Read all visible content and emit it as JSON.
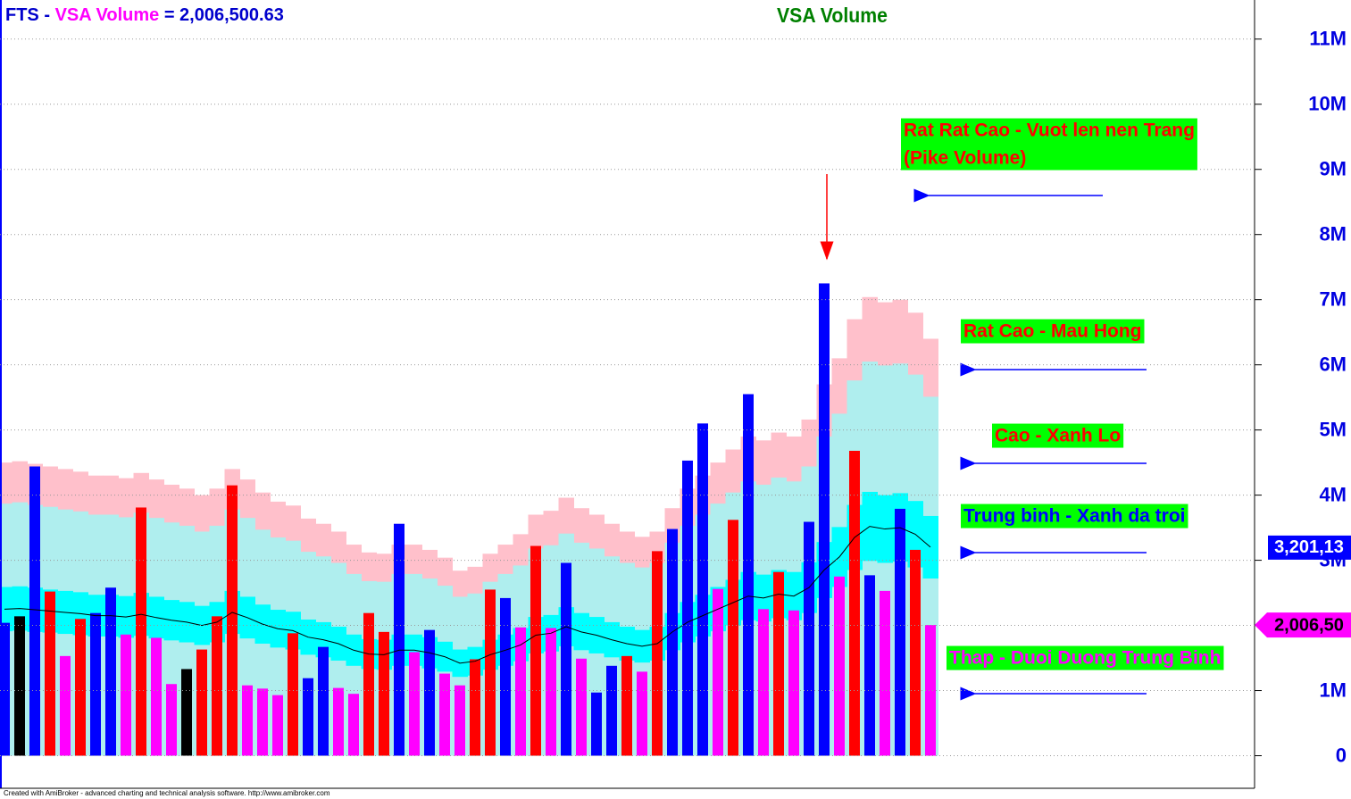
{
  "chart_data": {
    "type": "bar",
    "title": "VSA Volume",
    "title_parts": [
      "FTS",
      " - ",
      " = 2,006,500.63"
    ],
    "footer": "Created with AmiBroker - advanced charting and technical analysis software. http://www.amibroker.com",
    "ylim": [
      -0.5,
      11.6
    ],
    "yticks": [
      0,
      {
        "value": 1,
        "label": "1M"
      },
      {
        "value": 2,
        "label": "2M"
      },
      {
        "value": 3,
        "label": "3M"
      },
      {
        "value": 4,
        "label": "4M"
      },
      {
        "value": 5,
        "label": "5M"
      },
      {
        "value": 6,
        "label": "6M"
      },
      {
        "value": 7,
        "label": "7M"
      },
      {
        "value": 8,
        "label": "8M"
      },
      {
        "value": 9,
        "label": "9M"
      },
      {
        "value": 10,
        "label": "10M"
      },
      {
        "value": 11,
        "label": "11M"
      }
    ],
    "grid": true,
    "series": [
      {
        "name": "VSA Volume",
        "values": [
          2.04,
          2.14,
          4.44,
          2.52,
          1.53,
          2.1,
          2.19,
          2.58,
          1.86,
          3.81,
          1.81,
          1.1,
          1.33,
          1.63,
          2.14,
          4.15,
          1.08,
          1.03,
          0.93,
          1.88,
          1.19,
          1.67,
          1.04,
          0.95,
          2.19,
          1.9,
          3.56,
          1.59,
          1.93,
          1.26,
          1.08,
          1.48,
          2.55,
          2.42,
          1.97,
          3.22,
          1.96,
          2.96,
          1.49,
          0.97,
          1.38,
          1.53,
          1.29,
          3.14,
          3.48,
          4.53,
          5.1,
          2.56,
          3.62,
          5.55,
          2.25,
          2.82,
          2.23,
          3.59,
          7.25,
          2.75,
          4.68,
          2.77,
          2.53,
          3.79,
          3.16,
          2.0065
        ],
        "colors": [
          "#0000ff",
          "#000000",
          "#0000ff",
          "#ff0000",
          "#ff00ff",
          "#ff0000",
          "#0000ff",
          "#0000ff",
          "#ff00ff",
          "#ff0000",
          "#ff00ff",
          "#ff00ff",
          "#000000",
          "#ff0000",
          "#ff0000",
          "#ff0000",
          "#ff00ff",
          "#ff00ff",
          "#ff00ff",
          "#ff0000",
          "#0000ff",
          "#0000ff",
          "#ff00ff",
          "#ff00ff",
          "#ff0000",
          "#ff0000",
          "#0000ff",
          "#ff00ff",
          "#0000ff",
          "#ff00ff",
          "#ff00ff",
          "#ff0000",
          "#ff0000",
          "#0000ff",
          "#ff00ff",
          "#ff0000",
          "#ff00ff",
          "#0000ff",
          "#ff00ff",
          "#0000ff",
          "#0000ff",
          "#ff0000",
          "#ff00ff",
          "#ff0000",
          "#0000ff",
          "#0000ff",
          "#0000ff",
          "#ff00ff",
          "#ff0000",
          "#0000ff",
          "#ff00ff",
          "#ff0000",
          "#ff00ff",
          "#0000ff",
          "#0000ff",
          "#ff00ff",
          "#ff0000",
          "#0000ff",
          "#ff00ff",
          "#0000ff",
          "#ff0000",
          "#ff00ff"
        ]
      }
    ],
    "ma": {
      "color": "#000000",
      "values": [
        2.25,
        2.26,
        2.24,
        2.22,
        2.2,
        2.18,
        2.15,
        2.15,
        2.13,
        2.17,
        2.12,
        2.08,
        2.05,
        2.0,
        2.05,
        2.2,
        2.12,
        2.02,
        1.95,
        1.92,
        1.82,
        1.78,
        1.72,
        1.62,
        1.56,
        1.55,
        1.62,
        1.62,
        1.58,
        1.52,
        1.42,
        1.45,
        1.55,
        1.62,
        1.7,
        1.85,
        1.88,
        1.98,
        1.9,
        1.85,
        1.78,
        1.72,
        1.68,
        1.72,
        1.9,
        2.05,
        2.15,
        2.25,
        2.35,
        2.45,
        2.42,
        2.48,
        2.45,
        2.58,
        2.85,
        3.05,
        3.35,
        3.52,
        3.48,
        3.5,
        3.4,
        3.2013
      ]
    },
    "bands": [
      {
        "color": "#ffc0cb",
        "values": [
          4.5,
          4.52,
          4.48,
          4.44,
          4.4,
          4.36,
          4.3,
          4.3,
          4.26,
          4.34,
          4.24,
          4.16,
          4.1,
          4.0,
          4.1,
          4.4,
          4.24,
          4.04,
          3.9,
          3.84,
          3.64,
          3.56,
          3.44,
          3.24,
          3.12,
          3.1,
          3.24,
          3.24,
          3.16,
          3.04,
          2.84,
          2.9,
          3.1,
          3.24,
          3.4,
          3.7,
          3.76,
          3.96,
          3.8,
          3.7,
          3.56,
          3.44,
          3.36,
          3.44,
          3.8,
          4.1,
          4.3,
          4.5,
          4.7,
          4.9,
          4.84,
          4.96,
          4.9,
          5.16,
          5.7,
          6.1,
          6.7,
          7.04,
          6.96,
          7.0,
          6.8,
          6.4
        ]
      },
      {
        "color": "#afeeee",
        "values": [
          3.87,
          3.89,
          3.85,
          3.82,
          3.78,
          3.75,
          3.7,
          3.7,
          3.66,
          3.73,
          3.65,
          3.58,
          3.53,
          3.44,
          3.53,
          3.78,
          3.65,
          3.47,
          3.35,
          3.3,
          3.13,
          3.06,
          2.96,
          2.79,
          2.68,
          2.67,
          2.79,
          2.79,
          2.72,
          2.61,
          2.44,
          2.49,
          2.67,
          2.79,
          2.92,
          3.18,
          3.23,
          3.41,
          3.27,
          3.18,
          3.06,
          2.96,
          2.89,
          2.96,
          3.27,
          3.53,
          3.7,
          3.87,
          4.04,
          4.21,
          4.16,
          4.27,
          4.21,
          4.44,
          4.9,
          5.25,
          5.76,
          6.05,
          5.99,
          6.02,
          5.85,
          5.51
        ]
      },
      {
        "color": "#00ffff",
        "lower": [
          1.91,
          1.92,
          1.9,
          1.89,
          1.87,
          1.85,
          1.83,
          1.83,
          1.81,
          1.84,
          1.8,
          1.77,
          1.74,
          1.7,
          1.74,
          1.87,
          1.8,
          1.72,
          1.66,
          1.63,
          1.55,
          1.51,
          1.46,
          1.38,
          1.33,
          1.32,
          1.38,
          1.38,
          1.34,
          1.29,
          1.21,
          1.23,
          1.32,
          1.38,
          1.45,
          1.57,
          1.6,
          1.68,
          1.62,
          1.57,
          1.51,
          1.46,
          1.43,
          1.46,
          1.62,
          1.74,
          1.83,
          1.91,
          2.0,
          2.08,
          2.06,
          2.11,
          2.08,
          2.19,
          2.42,
          2.59,
          2.85,
          2.99,
          2.96,
          2.98,
          2.89,
          2.72
        ],
        "upper": [
          2.59,
          2.6,
          2.58,
          2.55,
          2.53,
          2.51,
          2.47,
          2.47,
          2.45,
          2.5,
          2.44,
          2.39,
          2.36,
          2.3,
          2.36,
          2.53,
          2.44,
          2.32,
          2.24,
          2.21,
          2.09,
          2.05,
          1.98,
          1.86,
          1.79,
          1.78,
          1.86,
          1.86,
          1.82,
          1.75,
          1.63,
          1.67,
          1.78,
          1.86,
          1.96,
          2.13,
          2.16,
          2.28,
          2.19,
          2.13,
          2.05,
          1.98,
          1.93,
          1.98,
          2.19,
          2.36,
          2.47,
          2.59,
          2.7,
          2.82,
          2.78,
          2.85,
          2.82,
          2.97,
          3.28,
          3.51,
          3.85,
          4.05,
          4.0,
          4.03,
          3.91,
          3.68
        ]
      }
    ],
    "last_markers": [
      {
        "label": "3,201,13",
        "value": 3.2013,
        "color": "#0000ff"
      },
      {
        "label": "2,006,50",
        "value": 2.0065,
        "color": "#ff00ff"
      }
    ],
    "annotations": [
      {
        "text": [
          "Rat Rat Cao - Vuot len nen Trang",
          "(Pike Volume)"
        ],
        "color": "#ff0000",
        "background": "#00ff00"
      },
      {
        "text": [
          "Rat Cao - Mau Hong"
        ],
        "color": "#ff0000",
        "background": "#00ff00"
      },
      {
        "text": [
          "Cao - Xanh Lo"
        ],
        "color": "#ff0000",
        "background": "#00ff00"
      },
      {
        "text": [
          "Trung binh - Xanh da troi"
        ],
        "color": "#0000ff",
        "background": "#00ff00"
      },
      {
        "text": [
          "Thap - Duoi Duong Trung Binh"
        ],
        "color": "#ff00ff",
        "background": "#00ff00"
      }
    ]
  }
}
